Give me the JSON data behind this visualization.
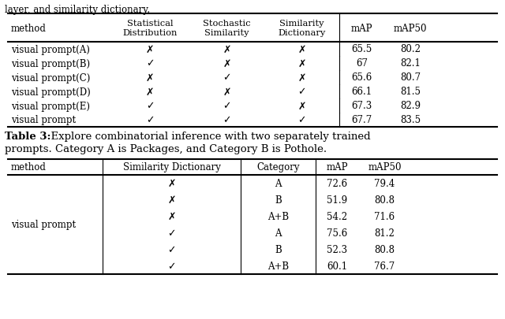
{
  "top_text": "layer, and similarity dictionary.",
  "table1_header": [
    "method",
    "Statistical\nDistribution",
    "Stochastic\nSimilarity",
    "Similarity\nDictionary",
    "mAP",
    "mAP50"
  ],
  "table1_rows": [
    [
      "visual prompt(A)",
      "✗",
      "✗",
      "✗",
      "65.5",
      "80.2"
    ],
    [
      "visual prompt(B)",
      "✓",
      "✗",
      "✗",
      "67",
      "82.1"
    ],
    [
      "visual prompt(C)",
      "✗",
      "✓",
      "✗",
      "65.6",
      "80.7"
    ],
    [
      "visual prompt(D)",
      "✗",
      "✗",
      "✓",
      "66.1",
      "81.5"
    ],
    [
      "visual prompt(E)",
      "✓",
      "✓",
      "✗",
      "67.3",
      "82.9"
    ],
    [
      "visual prompt",
      "✓",
      "✓",
      "✓",
      "67.7",
      "83.5"
    ]
  ],
  "caption_bold": "Table 3:",
  "caption_rest": "  Explore combinatorial inference with two separately trained",
  "caption_line2": "prompts. Category A is Packages, and Category B is Pothole.",
  "table2_header": [
    "method",
    "Similarity Dictionary",
    "Category",
    "mAP",
    "mAP50"
  ],
  "table2_rows": [
    [
      "",
      "✗",
      "A",
      "72.6",
      "79.4"
    ],
    [
      "",
      "✗",
      "B",
      "51.9",
      "80.8"
    ],
    [
      "",
      "✗",
      "A+B",
      "54.2",
      "71.6"
    ],
    [
      "",
      "✓",
      "A",
      "75.6",
      "81.2"
    ],
    [
      "",
      "✓",
      "B",
      "52.3",
      "80.8"
    ],
    [
      "",
      "✓",
      "A+B",
      "60.1",
      "76.7"
    ]
  ],
  "table2_method_label": "visual prompt",
  "bg_color": "#ffffff",
  "text_color": "#000000",
  "line_color": "#000000"
}
